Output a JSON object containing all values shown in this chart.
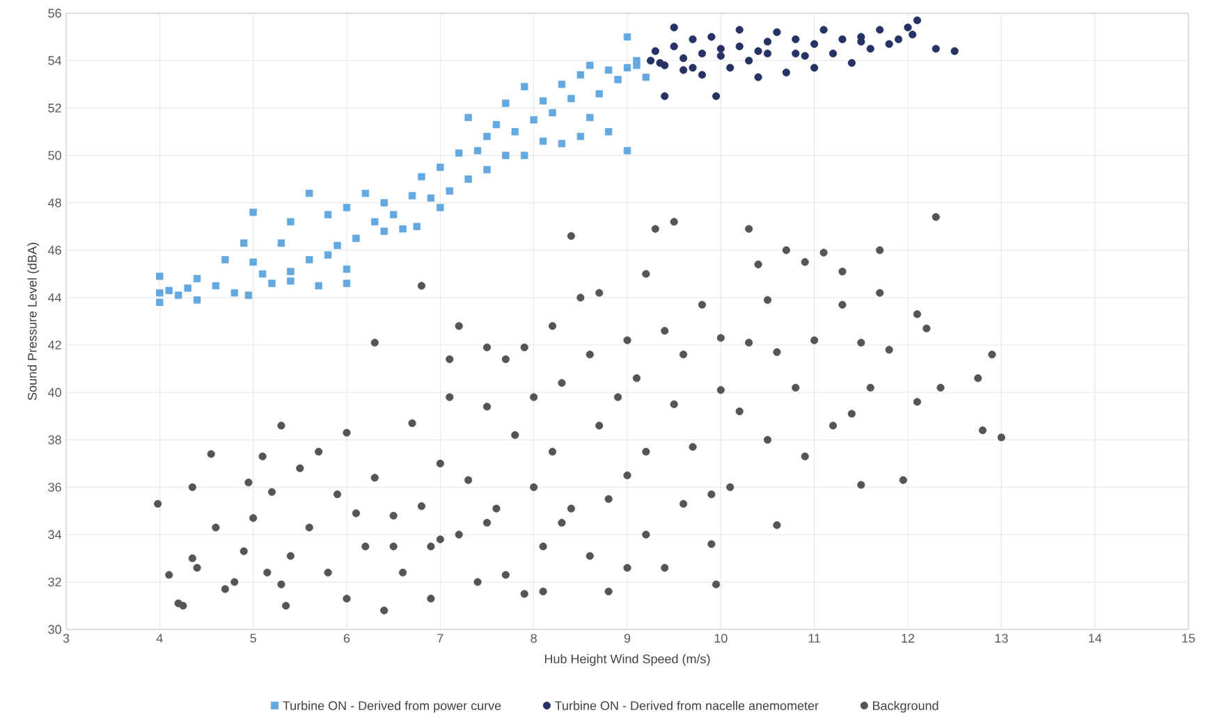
{
  "chart_data": {
    "type": "scatter",
    "xlabel": "Hub Height Wind Speed (m/s)",
    "ylabel": "Sound Pressure Level (dBA)",
    "xlim": [
      3,
      15
    ],
    "ylim": [
      30,
      56
    ],
    "xticks": [
      3,
      4,
      5,
      6,
      7,
      8,
      9,
      10,
      11,
      12,
      13,
      14,
      15
    ],
    "yticks": [
      30,
      32,
      34,
      36,
      38,
      40,
      42,
      44,
      46,
      48,
      50,
      52,
      54,
      56
    ],
    "grid": true,
    "legend": "bottom",
    "series": [
      {
        "name": "Turbine ON - Derived from power curve",
        "color": "#64a8e0",
        "marker": "square",
        "x": [
          4,
          4,
          4,
          4.1,
          4.2,
          4.3,
          4.4,
          4.4,
          4.6,
          4.7,
          4.8,
          4.9,
          4.95,
          5,
          5,
          5.1,
          5.2,
          5.3,
          5.4,
          5.4,
          5.4,
          5.6,
          5.6,
          5.7,
          5.8,
          5.8,
          5.9,
          6,
          6,
          6,
          6.1,
          6.2,
          6.3,
          6.4,
          6.4,
          6.5,
          6.6,
          6.7,
          6.75,
          6.8,
          6.9,
          7,
          7,
          7.1,
          7.2,
          7.3,
          7.3,
          7.4,
          7.5,
          7.5,
          7.6,
          7.7,
          7.7,
          7.8,
          7.9,
          7.9,
          8,
          8.1,
          8.1,
          8.2,
          8.3,
          8.3,
          8.4,
          8.5,
          8.5,
          8.6,
          8.6,
          8.7,
          8.8,
          8.8,
          8.9,
          9,
          9,
          9,
          9.1,
          9.2,
          9.1
        ],
        "values": [
          44.9,
          44.2,
          43.8,
          44.3,
          44.1,
          44.4,
          43.9,
          44.8,
          44.5,
          45.6,
          44.2,
          46.3,
          44.1,
          47.6,
          45.5,
          45,
          44.6,
          46.3,
          45.1,
          47.2,
          44.7,
          48.4,
          45.6,
          44.5,
          47.5,
          45.8,
          46.2,
          45.2,
          44.6,
          47.8,
          46.5,
          48.4,
          47.2,
          46.8,
          48,
          47.5,
          46.9,
          48.3,
          47,
          49.1,
          48.2,
          49.5,
          47.8,
          48.5,
          50.1,
          49,
          51.6,
          50.2,
          50.8,
          49.4,
          51.3,
          50,
          52.2,
          51,
          50,
          52.9,
          51.5,
          50.6,
          52.3,
          51.8,
          53,
          50.5,
          52.4,
          50.8,
          53.4,
          51.6,
          53.8,
          52.6,
          53.6,
          51,
          53.2,
          50.2,
          55,
          53.7,
          53.8,
          53.3,
          54
        ]
      },
      {
        "name": "Turbine ON - Derived from nacelle anemometer",
        "color": "#263264",
        "marker": "circle",
        "x": [
          9.25,
          9.3,
          9.4,
          9.4,
          9.5,
          9.5,
          9.6,
          9.6,
          9.7,
          9.8,
          9.8,
          9.9,
          9.95,
          10,
          10.1,
          10.2,
          10.2,
          10.3,
          10.4,
          10.5,
          10.5,
          10.6,
          10.7,
          10.8,
          10.9,
          11,
          11,
          11.1,
          11.2,
          11.3,
          11.4,
          11.5,
          11.5,
          11.6,
          11.7,
          11.8,
          11.9,
          12,
          12.05,
          12.1,
          12.3,
          12.5,
          9.35,
          9.7,
          10,
          10.4,
          10.8
        ],
        "values": [
          54,
          54.4,
          53.8,
          52.5,
          55.4,
          54.6,
          54.1,
          53.6,
          54.9,
          54.3,
          53.4,
          55,
          52.5,
          54.2,
          53.7,
          55.3,
          54.6,
          54,
          53.3,
          54.8,
          54.3,
          55.2,
          53.5,
          54.9,
          54.2,
          54.7,
          53.7,
          55.3,
          54.3,
          54.9,
          53.9,
          54.8,
          55,
          54.5,
          55.3,
          54.7,
          54.9,
          55.4,
          55.1,
          55.7,
          54.5,
          54.4,
          53.9,
          53.7,
          54.5,
          54.4,
          54.3
        ]
      },
      {
        "name": "Background",
        "color": "#555555",
        "marker": "circle",
        "x": [
          3.98,
          4.1,
          4.2,
          4.25,
          4.35,
          4.35,
          4.4,
          4.55,
          4.6,
          4.7,
          4.8,
          4.9,
          4.95,
          5,
          5.1,
          5.15,
          5.2,
          5.3,
          5.3,
          5.35,
          5.4,
          5.5,
          5.6,
          5.7,
          5.8,
          5.9,
          6,
          6,
          6.1,
          6.2,
          6.3,
          6.3,
          6.4,
          6.5,
          6.6,
          6.7,
          6.8,
          6.8,
          6.9,
          6.9,
          7,
          7.1,
          7.1,
          7.2,
          7.2,
          7.3,
          7.4,
          7.5,
          7.5,
          7.6,
          7.7,
          7.7,
          7.8,
          7.9,
          7.9,
          8,
          8,
          8.1,
          8.1,
          8.2,
          8.2,
          8.3,
          8.4,
          8.4,
          8.5,
          8.6,
          8.6,
          8.7,
          8.7,
          8.8,
          8.9,
          9,
          9,
          9,
          9.1,
          9.2,
          9.2,
          9.2,
          9.3,
          9.4,
          9.4,
          9.5,
          9.5,
          9.6,
          9.6,
          9.7,
          9.8,
          9.9,
          9.95,
          10,
          10,
          10.1,
          10.2,
          10.3,
          10.3,
          10.4,
          10.5,
          10.6,
          10.6,
          10.7,
          10.8,
          10.9,
          10.9,
          11,
          11.1,
          11.2,
          11.3,
          11.3,
          11.4,
          11.5,
          11.5,
          11.6,
          11.7,
          11.7,
          11.8,
          11.95,
          12.1,
          12.1,
          12.2,
          12.3,
          12.35,
          12.75,
          12.8,
          12.9,
          13,
          8.3,
          7,
          6.5,
          7.5,
          8.8,
          9.9,
          10.5
        ],
        "values": [
          35.3,
          32.3,
          31.1,
          31,
          36,
          33,
          32.6,
          37.4,
          34.3,
          31.7,
          32,
          33.3,
          36.2,
          34.7,
          37.3,
          32.4,
          35.8,
          38.6,
          31.9,
          31,
          33.1,
          36.8,
          34.3,
          37.5,
          32.4,
          35.7,
          38.3,
          31.3,
          34.9,
          33.5,
          42.1,
          36.4,
          30.8,
          34.8,
          32.4,
          38.7,
          44.5,
          35.2,
          33.5,
          31.3,
          37,
          39.8,
          41.4,
          42.8,
          34,
          36.3,
          32,
          39.4,
          41.9,
          35.1,
          41.4,
          32.3,
          38.2,
          31.5,
          41.9,
          36,
          39.8,
          33.5,
          31.6,
          42.8,
          37.5,
          40.4,
          46.6,
          35.1,
          44,
          41.6,
          33.1,
          44.2,
          38.6,
          31.6,
          39.8,
          42.2,
          36.5,
          32.6,
          40.6,
          45,
          37.5,
          34,
          46.9,
          42.6,
          32.6,
          47.2,
          39.5,
          35.3,
          41.6,
          37.7,
          43.7,
          33.6,
          31.9,
          40.1,
          42.3,
          36,
          39.2,
          46.9,
          42.1,
          45.4,
          38,
          41.7,
          34.4,
          46,
          40.2,
          45.5,
          37.3,
          42.2,
          45.9,
          38.6,
          43.7,
          45.1,
          39.1,
          36.1,
          42.1,
          40.2,
          46,
          44.2,
          41.8,
          36.3,
          43.3,
          39.6,
          42.7,
          47.4,
          40.2,
          40.6,
          38.4,
          41.6,
          38.1,
          34.5,
          33.8,
          33.5,
          34.5,
          35.5,
          35.7,
          43.9
        ]
      }
    ]
  }
}
